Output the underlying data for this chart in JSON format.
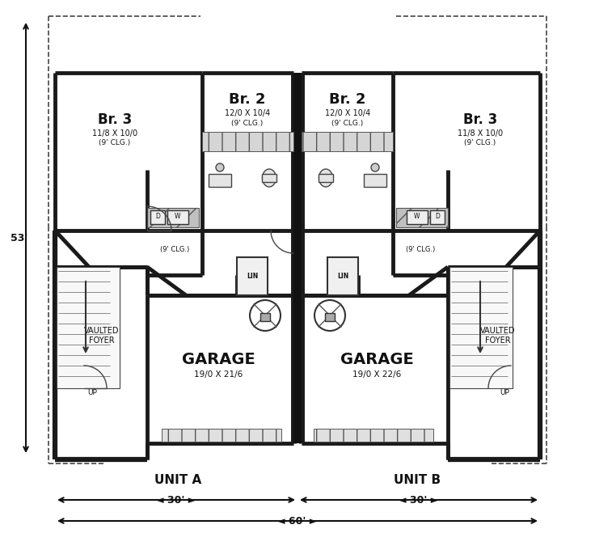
{
  "bg_color": "#ffffff",
  "wall_color": "#1a1a1a",
  "dashed_color": "#333333",
  "title_unit_a": "UNIT A",
  "title_unit_b": "UNIT B",
  "dim_30a": "30'",
  "dim_30b": "30'",
  "dim_60": "60'",
  "dim_53": "53'",
  "label_br2_a": "Br. 2",
  "label_br2_a_dim": "12/0 X 10/4",
  "label_br2_a_clg": "(9' CLG.)",
  "label_br2_b": "Br. 2",
  "label_br2_b_dim": "12/0 X 10/4",
  "label_br2_b_clg": "(9' CLG.)",
  "label_br3_a": "Br. 3",
  "label_br3_a_dim": "11/8 X 10/0",
  "label_br3_a_clg": "(9' CLG.)",
  "label_br3_b": "Br. 3",
  "label_br3_b_dim": "11/8 X 10/0",
  "label_br3_b_clg": "(9' CLG.)",
  "label_garage_a": "GARAGE",
  "label_garage_a_dim": "19/0 X 21/6",
  "label_garage_b": "GARAGE",
  "label_garage_b_dim": "19/0 X 22/6",
  "label_foyer_a": "VAULTED\nFOYER",
  "label_foyer_b": "VAULTED\nFOYER",
  "label_clg_a": "(9' CLG.)",
  "label_clg_b": "(9' CLG.)",
  "label_lin_a": "LIN",
  "label_lin_b": "LIN",
  "label_up_a": "UP",
  "label_up_b": "UP",
  "label_d_a": "D",
  "label_w_a": "W",
  "label_d_b": "D",
  "label_w_b": "W"
}
